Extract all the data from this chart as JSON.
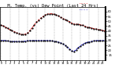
{
  "title": "   M. Temp. (vs) Dew Point (Last 24 Hrs)",
  "title_fontsize": 3.8,
  "background_color": "#ffffff",
  "temp_color": "#dd0000",
  "dew_color": "#0000cc",
  "marker_color": "#000000",
  "grid_color": "#888888",
  "temp_values": [
    46,
    44,
    41,
    39,
    37,
    36,
    38,
    44,
    50,
    54,
    57,
    58,
    57,
    55,
    52,
    50,
    47,
    47,
    46,
    44,
    43,
    42,
    41,
    40
  ],
  "dew_values": [
    30,
    30,
    29,
    29,
    29,
    29,
    30,
    30,
    30,
    30,
    30,
    30,
    29,
    28,
    26,
    22,
    18,
    22,
    26,
    28,
    29,
    30,
    30,
    30
  ],
  "ylim": [
    10,
    65
  ],
  "ytick_vals": [
    15,
    20,
    25,
    30,
    35,
    40,
    45,
    50,
    55,
    60
  ],
  "ytick_labels": [
    "15",
    "20",
    "25",
    "30",
    "35",
    "40",
    "45",
    "50",
    "55",
    "60"
  ],
  "xtick_fontsize": 2.5,
  "ytick_fontsize": 2.8,
  "line_width": 0.7,
  "marker_size": 1.2,
  "n_points": 48
}
